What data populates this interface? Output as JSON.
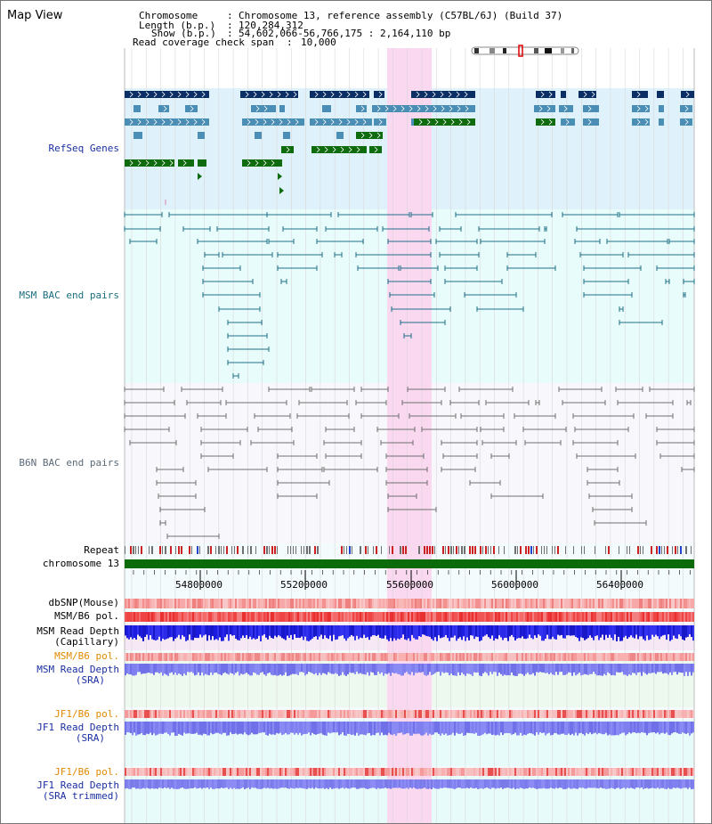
{
  "title": "Map View",
  "info": {
    "chromosome_key": "Chromosome",
    "chromosome_value": "Chromosome 13, reference assembly (C57BL/6J) (Build 37)",
    "length_key": "Length (b.p.)",
    "length_value": "120,284,312",
    "show_key": "Show (b.p.)",
    "show_value": "54,602,066-56,766,175 : 2,164,110 bp",
    "coverage_key": "Read coverage check span",
    "coverage_value": "10,000"
  },
  "tracks": {
    "refseq": "RefSeq Genes",
    "msm_bac": "MSM BAC end pairs",
    "b6n_bac": "B6N BAC end pairs",
    "repeat": "Repeat",
    "chromosome": "chromosome 13",
    "dbsnp": "dbSNP(Mouse)",
    "msm_b6_pol": "MSM/B6 pol.",
    "msm_depth_cap_1": "MSM Read Depth",
    "msm_depth_cap_2": "(Capillary)",
    "msm_b6_pol_2": "MSM/B6 pol.",
    "msm_depth_sra_1": "MSM Read Depth",
    "msm_depth_sra_2": "(SRA)",
    "jf1_pol_1": "JF1/B6 pol.",
    "jf1_depth_sra_1": "JF1 Read Depth",
    "jf1_depth_sra_2": "(SRA)",
    "jf1_pol_2": "JF1/B6 pol.",
    "jf1_depth_trim_1": "JF1 Read Depth",
    "jf1_depth_trim_2": "(SRA trimmed)"
  },
  "ruler": {
    "ticks": [
      "54800000",
      "55200000",
      "55600000",
      "56000000",
      "56400000"
    ]
  },
  "colors": {
    "refseq_bg": "#dff2fb",
    "msm_bg": "#e8fdfb",
    "b6n_bg": "#f8f8fc",
    "gene_dark": "#0b2f64",
    "gene_mid": "#4a8db5",
    "gene_green": "#0e6b0e",
    "msm_bac_line": "#1f6e8a",
    "b6n_bac_line": "#707070",
    "highlight": "#f9d8f0",
    "chromosome_bar": "#0b6b0b",
    "label_blue": "#1a2fa0",
    "label_teal": "#1a6e80",
    "label_orange": "#e08a00",
    "depth_blue": "#2020e0"
  }
}
